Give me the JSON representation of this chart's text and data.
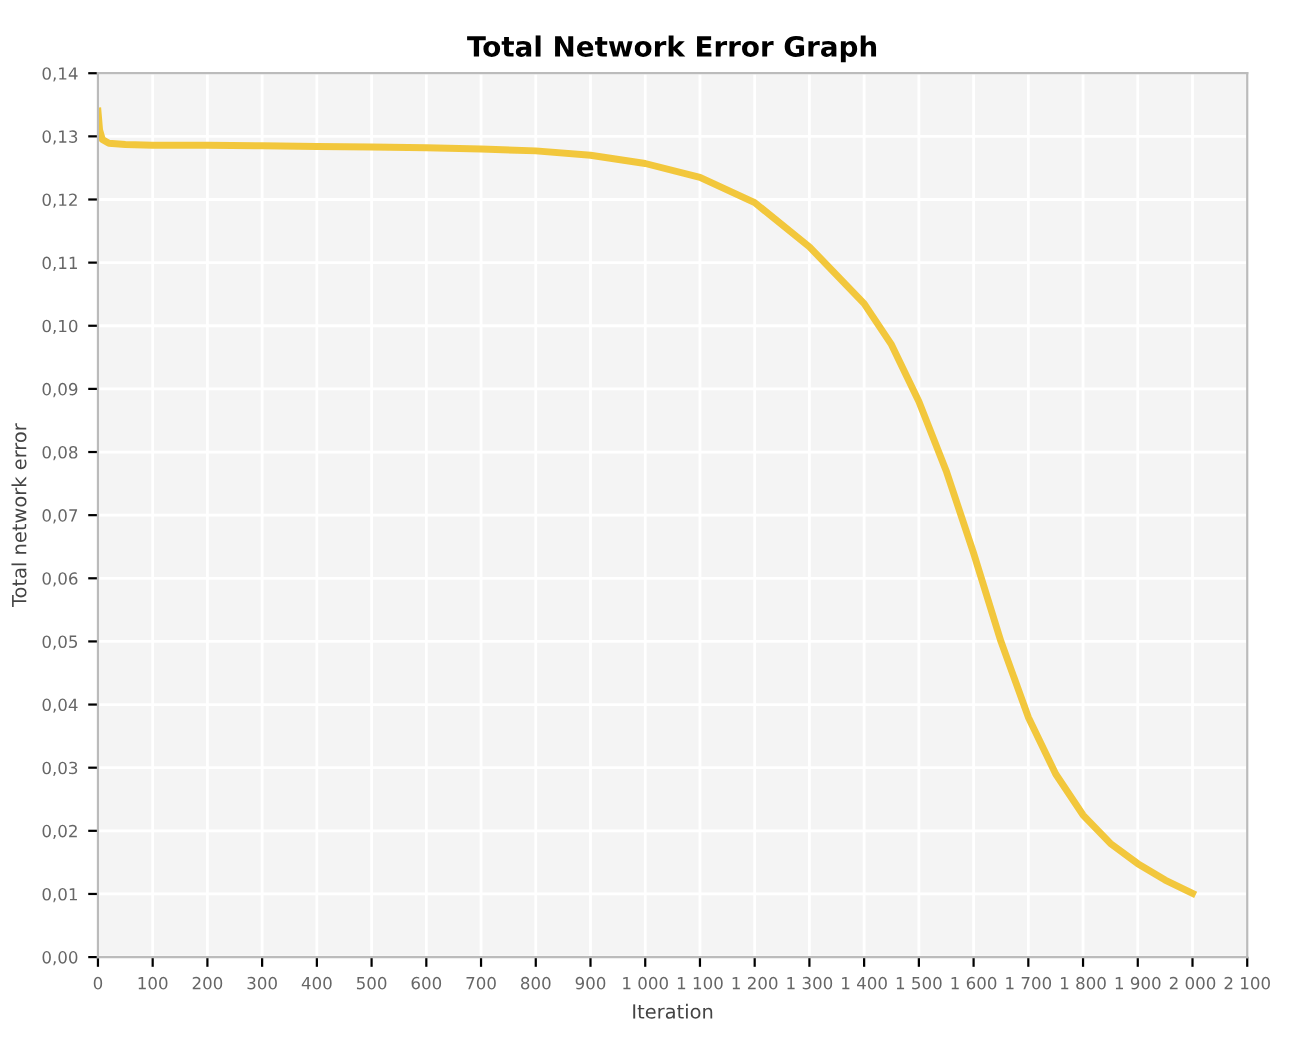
{
  "chart_data": {
    "type": "line",
    "title": "Total Network Error Graph",
    "xlabel": "Iteration",
    "ylabel": "Total network error",
    "x": [
      0,
      3,
      8,
      20,
      50,
      100,
      200,
      300,
      400,
      500,
      600,
      700,
      800,
      900,
      1000,
      1100,
      1200,
      1300,
      1400,
      1450,
      1500,
      1550,
      1600,
      1650,
      1700,
      1750,
      1800,
      1850,
      1900,
      1950,
      2000
    ],
    "series": [
      {
        "color": "#f2c73c",
        "values": [
          0.134,
          0.131,
          0.1295,
          0.1289,
          0.1287,
          0.1286,
          0.1286,
          0.1285,
          0.1284,
          0.1283,
          0.1282,
          0.128,
          0.1277,
          0.127,
          0.1257,
          0.1235,
          0.1195,
          0.1125,
          0.1035,
          0.097,
          0.088,
          0.077,
          0.064,
          0.05,
          0.038,
          0.029,
          0.0225,
          0.018,
          0.0148,
          0.0122,
          0.0101
        ]
      }
    ],
    "xlim": [
      0,
      2100
    ],
    "ylim": [
      0,
      0.14
    ],
    "xticks": [
      0,
      100,
      200,
      300,
      400,
      500,
      600,
      700,
      800,
      900,
      {
        "value": 1000,
        "label": "1 000"
      },
      {
        "value": 1100,
        "label": "1 100"
      },
      {
        "value": 1200,
        "label": "1 200"
      },
      {
        "value": 1300,
        "label": "1 300"
      },
      {
        "value": 1400,
        "label": "1 400"
      },
      {
        "value": 1500,
        "label": "1 500"
      },
      {
        "value": 1600,
        "label": "1 600"
      },
      {
        "value": 1700,
        "label": "1 700"
      },
      {
        "value": 1800,
        "label": "1 800"
      },
      {
        "value": 1900,
        "label": "1 900"
      },
      {
        "value": 2000,
        "label": "2 000"
      },
      {
        "value": 2100,
        "label": "2 100"
      }
    ],
    "yticks": [
      {
        "value": 0,
        "label": "0,00"
      },
      {
        "value": 0.01,
        "label": "0,01"
      },
      {
        "value": 0.02,
        "label": "0,02"
      },
      {
        "value": 0.03,
        "label": "0,03"
      },
      {
        "value": 0.04,
        "label": "0,04"
      },
      {
        "value": 0.05,
        "label": "0,05"
      },
      {
        "value": 0.06,
        "label": "0,06"
      },
      {
        "value": 0.07,
        "label": "0,07"
      },
      {
        "value": 0.08,
        "label": "0,08"
      },
      {
        "value": 0.09,
        "label": "0,09"
      },
      {
        "value": 0.1,
        "label": "0,10"
      },
      {
        "value": 0.11,
        "label": "0,11"
      },
      {
        "value": 0.12,
        "label": "0,12"
      },
      {
        "value": 0.13,
        "label": "0,13"
      },
      {
        "value": 0.14,
        "label": "0,14"
      }
    ],
    "grid": true,
    "legend": false
  }
}
